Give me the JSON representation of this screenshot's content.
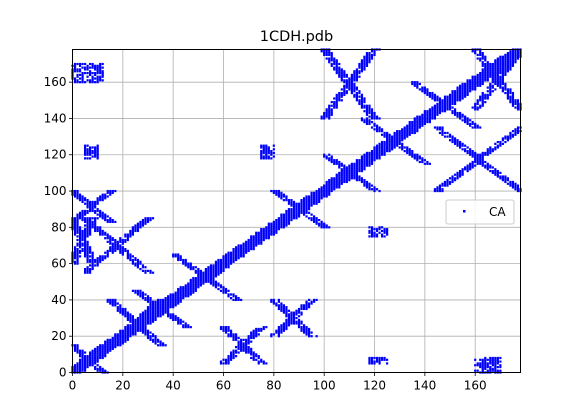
{
  "chart_data": {
    "type": "scatter",
    "title": "1CDH.pdb",
    "xlabel": "",
    "ylabel": "",
    "xlim": [
      0,
      178
    ],
    "ylim": [
      0,
      178
    ],
    "xticks": [
      0,
      20,
      40,
      60,
      80,
      100,
      120,
      140,
      160
    ],
    "yticks": [
      0,
      20,
      40,
      60,
      80,
      100,
      120,
      140,
      160
    ],
    "grid": true,
    "legend": {
      "placement": "right",
      "entries": [
        "CA"
      ]
    },
    "series": [
      {
        "name": "CA",
        "color": "#0000ff",
        "marker": "square-dot",
        "description_regions": "contact map: symmetric clusters along diagonal y=x",
        "regions": [
          {
            "x": [
              0,
              178
            ],
            "y": [
              0,
              178
            ],
            "kind": "diagonal-band",
            "width": 4
          },
          {
            "x": [
              0,
              12
            ],
            "y": [
              0,
              15
            ],
            "kind": "x-cross"
          },
          {
            "x": [
              0,
              15
            ],
            "y": [
              83,
              100
            ],
            "kind": "x-cross"
          },
          {
            "x": [
              15,
              35
            ],
            "y": [
              15,
              40
            ],
            "kind": "x-cross"
          },
          {
            "x": [
              25,
              45
            ],
            "y": [
              25,
              45
            ],
            "kind": "x-cross"
          },
          {
            "x": [
              40,
              65
            ],
            "y": [
              40,
              65
            ],
            "kind": "x-cross"
          },
          {
            "x": [
              60,
              75
            ],
            "y": [
              5,
              25
            ],
            "kind": "x-cross"
          },
          {
            "x": [
              80,
              95
            ],
            "y": [
              20,
              40
            ],
            "kind": "x-cross"
          },
          {
            "x": [
              80,
              100
            ],
            "y": [
              80,
              100
            ],
            "kind": "x-cross"
          },
          {
            "x": [
              100,
              120
            ],
            "y": [
              100,
              120
            ],
            "kind": "x-cross"
          },
          {
            "x": [
              115,
              140
            ],
            "y": [
              115,
              140
            ],
            "kind": "x-cross"
          },
          {
            "x": [
              135,
              160
            ],
            "y": [
              135,
              160
            ],
            "kind": "x-cross"
          },
          {
            "x": [
              160,
              178
            ],
            "y": [
              145,
              178
            ],
            "kind": "x-cross"
          },
          {
            "x": [
              100,
              120
            ],
            "y": [
              140,
              178
            ],
            "kind": "x-cross"
          },
          {
            "x": [
              145,
              178
            ],
            "y": [
              100,
              135
            ],
            "kind": "x-cross"
          },
          {
            "x": [
              0,
              8
            ],
            "y": [
              60,
              85
            ],
            "kind": "x-cross"
          },
          {
            "x": [
              5,
              30
            ],
            "y": [
              55,
              85
            ],
            "kind": "x-cross"
          },
          {
            "x": [
              160,
              170
            ],
            "y": [
              0,
              8
            ],
            "kind": "blob"
          },
          {
            "x": [
              118,
              125
            ],
            "y": [
              75,
              80
            ],
            "kind": "blob"
          },
          {
            "x": [
              118,
              125
            ],
            "y": [
              5,
              8
            ],
            "kind": "blob"
          },
          {
            "x": [
              5,
              10
            ],
            "y": [
              118,
              125
            ],
            "kind": "blob"
          },
          {
            "x": [
              75,
              80
            ],
            "y": [
              118,
              125
            ],
            "kind": "blob"
          },
          {
            "x": [
              0,
              12
            ],
            "y": [
              160,
              170
            ],
            "kind": "blob"
          }
        ]
      }
    ]
  },
  "figure": {
    "background": "#ffffff",
    "axes_color": "#000000",
    "grid_color": "#b0b0b0",
    "marker_color": "#0000ff"
  }
}
